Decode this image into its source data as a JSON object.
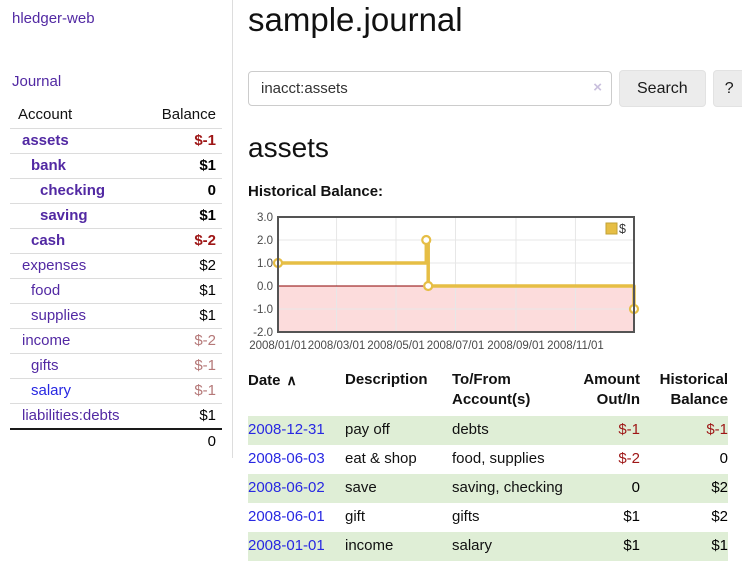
{
  "sidebar": {
    "brand": "hledger-web",
    "nav_journal": "Journal",
    "accounts_table": {
      "col_account": "Account",
      "col_balance": "Balance",
      "rows": [
        {
          "name": "assets",
          "balance": "$-1",
          "depth": 1,
          "bold": true,
          "name_style": "purple",
          "balance_style": "red"
        },
        {
          "name": "bank",
          "balance": "$1",
          "depth": 2,
          "bold": true,
          "name_style": "purple",
          "balance_style": "black"
        },
        {
          "name": "checking",
          "balance": "0",
          "depth": 3,
          "bold": true,
          "name_style": "purple",
          "balance_style": "black"
        },
        {
          "name": "saving",
          "balance": "$1",
          "depth": 3,
          "bold": true,
          "name_style": "purple",
          "balance_style": "black"
        },
        {
          "name": "cash",
          "balance": "$-2",
          "depth": 2,
          "bold": true,
          "name_style": "purple",
          "balance_style": "red"
        },
        {
          "name": "expenses",
          "balance": "$2",
          "depth": 1,
          "bold": false,
          "name_style": "purple",
          "balance_style": "black"
        },
        {
          "name": "food",
          "balance": "$1",
          "depth": 2,
          "bold": false,
          "name_style": "purple",
          "balance_style": "black"
        },
        {
          "name": "supplies",
          "balance": "$1",
          "depth": 2,
          "bold": false,
          "name_style": "purple",
          "balance_style": "black"
        },
        {
          "name": "income",
          "balance": "$-2",
          "depth": 1,
          "bold": false,
          "name_style": "purple",
          "balance_style": "rose"
        },
        {
          "name": "gifts",
          "balance": "$-1",
          "depth": 2,
          "bold": false,
          "name_style": "purple",
          "balance_style": "rose"
        },
        {
          "name": "salary",
          "balance": "$-1",
          "depth": 2,
          "bold": false,
          "name_style": "blue",
          "balance_style": "rose"
        },
        {
          "name": "liabilities:debts",
          "balance": "$1",
          "depth": 1,
          "bold": false,
          "name_style": "purple",
          "balance_style": "black"
        }
      ],
      "total": "0"
    }
  },
  "main": {
    "title": "sample.journal",
    "search": {
      "value": "inacct:assets",
      "clear_icon": "×",
      "button_label": "Search",
      "help_label": "?"
    },
    "account_heading": "assets",
    "chart_title": "Historical Balance:"
  },
  "chart_data": {
    "type": "line",
    "step": true,
    "title": "Historical Balance:",
    "series": [
      {
        "name": "$",
        "color": "#e6be45",
        "points": [
          [
            "2008-01-01",
            1.0
          ],
          [
            "2008-06-01",
            2.0
          ],
          [
            "2008-06-03",
            0.0
          ],
          [
            "2008-12-31",
            -1.0
          ]
        ]
      }
    ],
    "x_range": [
      "2008-01-01",
      "2008-12-31"
    ],
    "x_ticks": [
      "2008/01/01",
      "2008/03/01",
      "2008/05/01",
      "2008/07/01",
      "2008/09/01",
      "2008/11/01"
    ],
    "y_ticks": [
      3.0,
      2.0,
      1.0,
      0.0,
      -1.0,
      -2.0
    ],
    "ylim": [
      -2,
      3
    ],
    "grid": true,
    "legend": {
      "label": "$",
      "position": "top-right"
    },
    "negative_region_color": "#fcdcdc",
    "zero_line_color": "#8b0000",
    "border_color": "#545454"
  },
  "register": {
    "headers": {
      "date": "Date",
      "sort_icon": "∧",
      "description": "Description",
      "tofrom1": "To/From",
      "tofrom2": "Account(s)",
      "amount1": "Amount",
      "amount2": "Out/In",
      "hist1": "Historical",
      "hist2": "Balance"
    },
    "rows": [
      {
        "date": "2008-12-31",
        "description": "pay off",
        "accounts": "debts",
        "amount": "$-1",
        "amount_style": "red",
        "balance": "$-1",
        "balance_style": "red",
        "shaded": true
      },
      {
        "date": "2008-06-03",
        "description": "eat & shop",
        "accounts": "food, supplies",
        "amount": "$-2",
        "amount_style": "red",
        "balance": "0",
        "balance_style": "black",
        "shaded": false
      },
      {
        "date": "2008-06-02",
        "description": "save",
        "accounts": "saving, checking",
        "amount": "0",
        "amount_style": "black",
        "balance": "$2",
        "balance_style": "black",
        "shaded": true
      },
      {
        "date": "2008-06-01",
        "description": "gift",
        "accounts": "gifts",
        "amount": "$1",
        "amount_style": "black",
        "balance": "$2",
        "balance_style": "black",
        "shaded": false
      },
      {
        "date": "2008-01-01",
        "description": "income",
        "accounts": "salary",
        "amount": "$1",
        "amount_style": "black",
        "balance": "$1",
        "balance_style": "black",
        "shaded": true
      }
    ]
  }
}
